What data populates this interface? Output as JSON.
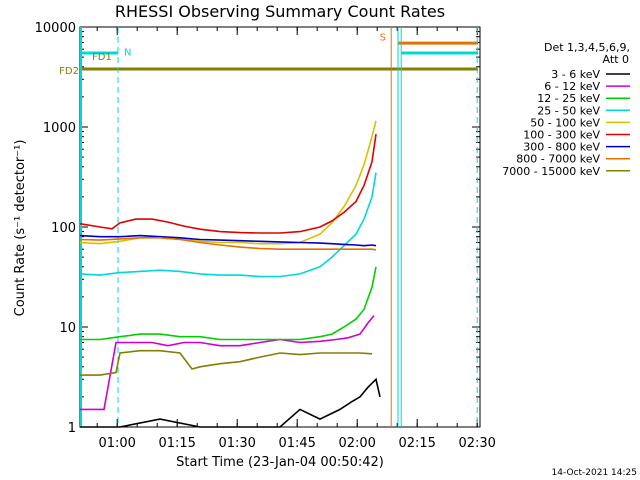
{
  "chart_data": {
    "type": "line",
    "title": "RHESSI Observing Summary Count Rates",
    "xlabel": "Start Time (23-Jan-04 00:50:42)",
    "ylabel": "Count Rate (s⁻¹ detector⁻¹)",
    "ylog": true,
    "ylim": [
      1,
      10000
    ],
    "xlim_minutes": [
      0,
      100
    ],
    "y_ticks": [
      "1",
      "10",
      "100",
      "1000",
      "10000"
    ],
    "x_ticks": [
      {
        "t": 9.3,
        "label": "01:00"
      },
      {
        "t": 24.3,
        "label": "01:15"
      },
      {
        "t": 39.3,
        "label": "01:30"
      },
      {
        "t": 54.3,
        "label": "01:45"
      },
      {
        "t": 69.3,
        "label": "02:00"
      },
      {
        "t": 84.3,
        "label": "02:15"
      },
      {
        "t": 99.3,
        "label": "02:30"
      }
    ],
    "legend_header": [
      "Det 1,3,4,5,6,9,",
      "Att 0"
    ],
    "series": [
      {
        "name": "3 - 6 keV",
        "color": "#000000",
        "x": [
          0,
          10,
          20,
          30,
          40,
          50,
          55,
          60,
          65,
          68,
          70,
          72,
          74,
          75
        ],
        "y": [
          1,
          1,
          1.2,
          1,
          1,
          1,
          1.5,
          1.2,
          1.5,
          1.8,
          2,
          2.5,
          3,
          2
        ]
      },
      {
        "name": "6 - 12 keV",
        "color": "#d000d0",
        "x": [
          0,
          3,
          6,
          9,
          14,
          18,
          22,
          26,
          30,
          35,
          40,
          45,
          50,
          55,
          60,
          64,
          67,
          70,
          72,
          73.5
        ],
        "y": [
          1.5,
          1.5,
          1.5,
          7,
          7,
          7,
          6.5,
          7,
          7,
          6.5,
          6.5,
          7,
          7.5,
          7,
          7.2,
          7.5,
          7.8,
          8.5,
          11,
          13
        ]
      },
      {
        "name": "12 - 25 keV",
        "color": "#00d000",
        "x": [
          0,
          5,
          10,
          15,
          20,
          25,
          30,
          35,
          40,
          45,
          50,
          55,
          60,
          63,
          66,
          69,
          71,
          73,
          74
        ],
        "y": [
          7.5,
          7.5,
          8,
          8.5,
          8.5,
          8,
          8,
          7.5,
          7.5,
          7.5,
          7.5,
          7.5,
          8,
          8.5,
          10,
          12,
          15,
          25,
          40
        ]
      },
      {
        "name": "25 - 50 keV",
        "color": "#00d8d8",
        "x": [
          0,
          5,
          10,
          15,
          20,
          25,
          30,
          35,
          40,
          45,
          50,
          55,
          60,
          63,
          66,
          69,
          71,
          73,
          74
        ],
        "y": [
          34,
          33,
          35,
          36,
          37,
          36,
          34,
          33,
          33,
          32,
          32,
          34,
          40,
          50,
          65,
          85,
          120,
          200,
          350
        ]
      },
      {
        "name": "50 - 100 keV",
        "color": "#d8c000",
        "x": [
          0,
          5,
          10,
          15,
          20,
          25,
          30,
          35,
          40,
          45,
          50,
          55,
          60,
          63,
          66,
          69,
          71,
          73,
          74
        ],
        "y": [
          70,
          68,
          72,
          78,
          80,
          76,
          72,
          70,
          70,
          68,
          68,
          70,
          85,
          110,
          160,
          260,
          420,
          800,
          1150
        ]
      },
      {
        "name": "100 - 300 keV",
        "color": "#e00000",
        "x": [
          0,
          5,
          8,
          10,
          14,
          18,
          22,
          26,
          30,
          35,
          40,
          45,
          50,
          55,
          60,
          63,
          66,
          69,
          71,
          73,
          74
        ],
        "y": [
          108,
          100,
          96,
          110,
          120,
          120,
          112,
          102,
          95,
          90,
          88,
          87,
          87,
          90,
          100,
          115,
          140,
          180,
          260,
          450,
          850
        ]
      },
      {
        "name": "300 - 800 keV",
        "color": "#0000c0",
        "x": [
          0,
          5,
          10,
          15,
          20,
          25,
          30,
          35,
          40,
          45,
          50,
          55,
          60,
          63,
          66,
          69,
          71,
          73,
          74
        ],
        "y": [
          82,
          80,
          80,
          82,
          80,
          78,
          75,
          74,
          73,
          72,
          71,
          70,
          69,
          68,
          67,
          66,
          65,
          66,
          65
        ]
      },
      {
        "name": "800 - 7000 keV",
        "color": "#e87000",
        "x": [
          0,
          5,
          10,
          15,
          20,
          25,
          30,
          35,
          40,
          45,
          50,
          55,
          60,
          63,
          66,
          69,
          71,
          73,
          74
        ],
        "y": [
          75,
          74,
          76,
          78,
          78,
          75,
          70,
          66,
          63,
          61,
          60,
          60,
          60,
          60,
          60,
          60,
          60,
          60,
          59
        ]
      },
      {
        "name": "7000 - 15000 keV",
        "color": "#808000",
        "x": [
          0,
          5,
          9,
          10,
          15,
          20,
          25,
          28,
          30,
          35,
          40,
          45,
          50,
          55,
          60,
          65,
          70,
          73
        ],
        "y": [
          3.3,
          3.3,
          3.5,
          5.5,
          5.8,
          5.8,
          5.5,
          3.8,
          4,
          4.3,
          4.5,
          5,
          5.5,
          5.3,
          5.5,
          5.5,
          5.5,
          5.4
        ]
      }
    ],
    "flag_annotations": [
      {
        "label": "N",
        "color": "#00d8d8"
      },
      {
        "label": "S",
        "color": "#e87000"
      },
      {
        "label": "FD1",
        "color": "#808000"
      },
      {
        "label": "FD2",
        "color": "#808000"
      }
    ],
    "flag_bars": [
      {
        "color": "#00d8d8",
        "level": 5500,
        "x_from": 0,
        "x_to": 9.5
      },
      {
        "color": "#00d8d8",
        "level": 5500,
        "x_from": 80.3,
        "x_to": 99.5
      },
      {
        "color": "#e87000",
        "level": 6900,
        "x_from": 79.5,
        "x_to": 99.5
      },
      {
        "color": "#808000",
        "level": 3800,
        "x_from": 0,
        "x_to": 99.5
      }
    ],
    "vertical_lines": [
      {
        "x": 9.5,
        "color": "#00d8d8",
        "dashed": true
      },
      {
        "x": 99.3,
        "color": "#00d8d8",
        "dashed": true
      },
      {
        "x": 77.8,
        "color": "#e87000",
        "dashed": false
      },
      {
        "x": 79.5,
        "color": "#00d8d8",
        "dashed": false
      },
      {
        "x": 80.3,
        "color": "#00d8d8",
        "dashed": false
      }
    ],
    "footer_date": "14-Oct-2021 14:25"
  }
}
